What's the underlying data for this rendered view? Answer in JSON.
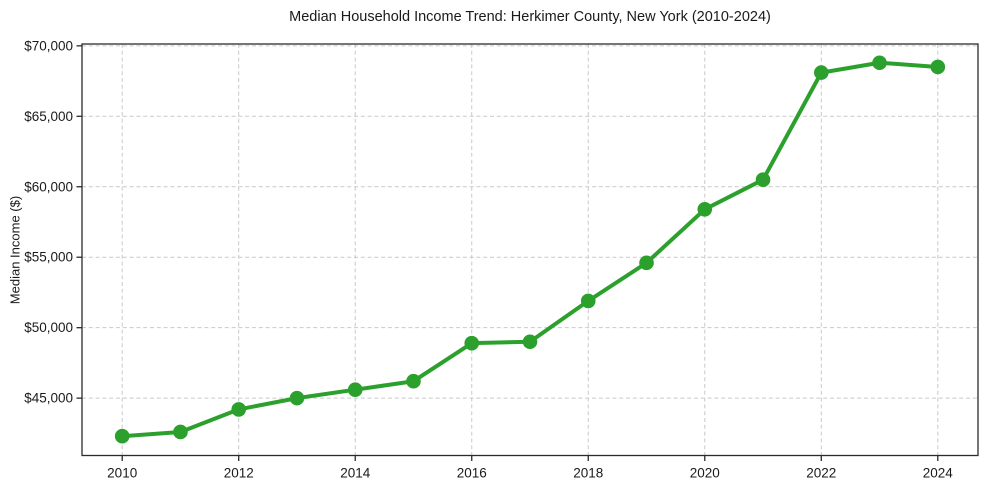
{
  "chart": {
    "title": "Median Household Income Trend: Herkimer County, New York (2010-2024)",
    "ylabel": "Median Income ($)",
    "xlabel": ""
  },
  "chart_data": {
    "type": "line",
    "series": [
      {
        "name": "Median Household Income",
        "color": "#2ca02c",
        "marker": "circle",
        "x": [
          2010,
          2011,
          2012,
          2013,
          2014,
          2015,
          2016,
          2017,
          2018,
          2019,
          2020,
          2021,
          2022,
          2023,
          2024
        ],
        "values": [
          42300,
          42600,
          44200,
          45000,
          45600,
          46200,
          48900,
          49000,
          51900,
          54600,
          58400,
          60500,
          68100,
          68800,
          68500
        ]
      }
    ],
    "title": "Median Household Income Trend: Herkimer County, New York (2010-2024)",
    "xlabel": "",
    "ylabel": "Median Income ($)",
    "xlim": [
      2009.31,
      2024.69
    ],
    "ylim": [
      40930,
      70130
    ],
    "xticks": {
      "values": [
        2010,
        2012,
        2014,
        2016,
        2018,
        2020,
        2022,
        2024
      ],
      "labels": [
        "2010",
        "2012",
        "2014",
        "2016",
        "2018",
        "2020",
        "2022",
        "2024"
      ]
    },
    "yticks": {
      "values": [
        45000,
        50000,
        55000,
        60000,
        65000,
        70000
      ],
      "labels": [
        "$45,000",
        "$50,000",
        "$55,000",
        "$60,000",
        "$65,000",
        "$70,000"
      ]
    },
    "grid": true,
    "grid_color": "#c9c9c9",
    "grid_dash": "4 2.8",
    "spine_color": "#2b2b2b",
    "legend": "none",
    "background": "#ffffff"
  }
}
